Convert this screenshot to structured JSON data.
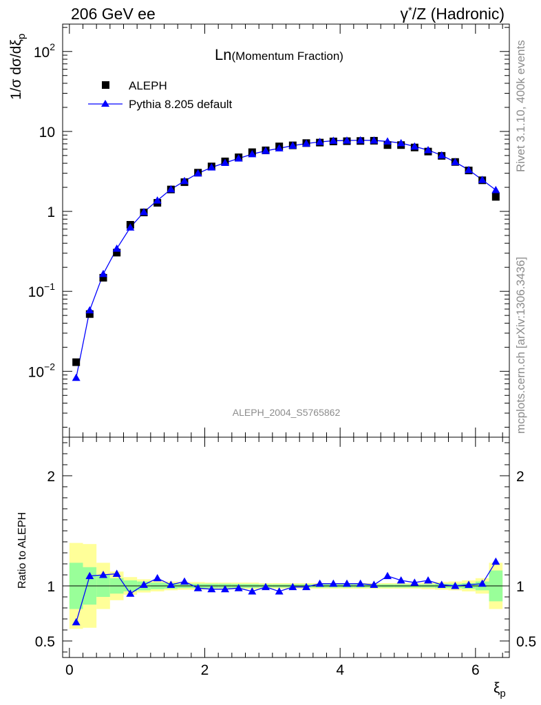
{
  "header": {
    "left": "206 GeV ee",
    "right_gamma": "γ",
    "right_star": "*",
    "right_rest": "/Z (Hadronic)"
  },
  "side": {
    "rivet": "Rivet 3.1.10,  400k events",
    "mcplots": "mcplots.cern.ch [arXiv:1306.3436]"
  },
  "chart_data": [
    {
      "type": "scatter",
      "title_main": "Ln",
      "title_sub": "(Momentum Fraction)",
      "ylabel": "1/σ dσ/dξ",
      "ylabel_sub": "p",
      "yscale": "log",
      "ylim": [
        0.0015,
        220
      ],
      "xlim": [
        -0.1,
        6.5
      ],
      "y_ticks": [
        {
          "value": 0.01,
          "base": "10",
          "exp": "−2"
        },
        {
          "value": 0.1,
          "base": "10",
          "exp": "−1"
        },
        {
          "value": 1,
          "base": "1",
          "exp": ""
        },
        {
          "value": 10,
          "base": "10",
          "exp": ""
        },
        {
          "value": 100,
          "base": "10",
          "exp": "2"
        }
      ],
      "watermark": "ALEPH_2004_S5765862",
      "legend_position": "top-left",
      "x": [
        0.1,
        0.3,
        0.5,
        0.7,
        0.9,
        1.1,
        1.3,
        1.5,
        1.7,
        1.9,
        2.1,
        2.3,
        2.5,
        2.7,
        2.9,
        3.1,
        3.3,
        3.5,
        3.7,
        3.9,
        4.1,
        4.3,
        4.5,
        4.7,
        4.9,
        5.1,
        5.3,
        5.5,
        5.7,
        5.9,
        6.1,
        6.3
      ],
      "series": [
        {
          "name": "ALEPH",
          "marker": "square",
          "color": "#000000",
          "values": [
            0.013,
            0.052,
            0.148,
            0.305,
            0.68,
            0.97,
            1.28,
            1.88,
            2.32,
            3.05,
            3.65,
            4.22,
            4.75,
            5.5,
            5.8,
            6.5,
            6.7,
            7.15,
            7.25,
            7.5,
            7.55,
            7.6,
            7.65,
            6.75,
            6.75,
            6.3,
            5.6,
            4.95,
            4.15,
            3.25,
            2.45,
            1.52
          ]
        },
        {
          "name": "Pythia 8.205 default",
          "marker": "triangle",
          "color": "#0000ff",
          "values": [
            0.0083,
            0.058,
            0.165,
            0.342,
            0.63,
            0.98,
            1.37,
            1.89,
            2.4,
            2.99,
            3.55,
            4.05,
            4.6,
            5.2,
            5.72,
            6.15,
            6.65,
            7.05,
            7.4,
            7.65,
            7.7,
            7.75,
            7.72,
            7.5,
            7.15,
            6.48,
            5.85,
            5.02,
            4.14,
            3.3,
            2.48,
            1.85
          ]
        }
      ]
    },
    {
      "type": "line",
      "ylabel": "Ratio to ALEPH",
      "xlabel": "ξ",
      "xlabel_sub": "p",
      "ylim": [
        0.35,
        2.35
      ],
      "xlim": [
        -0.1,
        6.5
      ],
      "x_ticks": [
        0,
        2,
        4,
        6
      ],
      "y_ticks": [
        0.5,
        1,
        2
      ],
      "reference_line": 1,
      "bins": [
        0,
        0.2,
        0.4,
        0.6,
        0.8,
        1.0,
        1.2,
        1.4,
        1.6,
        1.8,
        2.0,
        2.2,
        2.4,
        2.6,
        2.8,
        3.0,
        3.2,
        3.4,
        3.6,
        3.8,
        4.0,
        4.2,
        4.4,
        4.6,
        4.8,
        5.0,
        5.2,
        5.4,
        5.6,
        5.8,
        6.0,
        6.2,
        6.4
      ],
      "band_stat": [
        0.21,
        0.17,
        0.1,
        0.07,
        0.05,
        0.04,
        0.03,
        0.025,
        0.02,
        0.02,
        0.02,
        0.02,
        0.018,
        0.018,
        0.015,
        0.015,
        0.015,
        0.015,
        0.015,
        0.015,
        0.015,
        0.015,
        0.015,
        0.015,
        0.015,
        0.015,
        0.015,
        0.02,
        0.02,
        0.025,
        0.04,
        0.14
      ],
      "band_total": [
        0.39,
        0.38,
        0.21,
        0.13,
        0.08,
        0.06,
        0.05,
        0.04,
        0.035,
        0.035,
        0.03,
        0.03,
        0.03,
        0.03,
        0.025,
        0.025,
        0.025,
        0.025,
        0.025,
        0.025,
        0.025,
        0.025,
        0.025,
        0.025,
        0.025,
        0.025,
        0.03,
        0.035,
        0.04,
        0.05,
        0.07,
        0.21
      ],
      "series": [
        {
          "name": "Pythia 8.205 default",
          "color": "#0000ff",
          "x": [
            0.1,
            0.3,
            0.5,
            0.7,
            0.9,
            1.1,
            1.3,
            1.5,
            1.7,
            1.9,
            2.1,
            2.3,
            2.5,
            2.7,
            2.9,
            3.1,
            3.3,
            3.5,
            3.7,
            3.9,
            4.1,
            4.3,
            4.5,
            4.7,
            4.9,
            5.1,
            5.3,
            5.5,
            5.7,
            5.9,
            6.1,
            6.3
          ],
          "values": [
            0.67,
            1.09,
            1.1,
            1.11,
            0.93,
            1.01,
            1.07,
            1.01,
            1.04,
            0.98,
            0.97,
            0.97,
            0.98,
            0.95,
            0.99,
            0.95,
            0.99,
            0.99,
            1.02,
            1.02,
            1.02,
            1.02,
            1.01,
            1.09,
            1.05,
            1.03,
            1.05,
            1.01,
            1.0,
            1.01,
            1.02,
            1.22
          ]
        }
      ]
    }
  ]
}
